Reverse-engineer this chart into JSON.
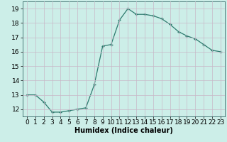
{
  "x": [
    0,
    1,
    2,
    3,
    4,
    5,
    6,
    7,
    8,
    9,
    10,
    11,
    12,
    13,
    14,
    15,
    16,
    17,
    18,
    19,
    20,
    21,
    22,
    23
  ],
  "y": [
    13.0,
    13.0,
    12.5,
    11.8,
    11.8,
    11.9,
    12.0,
    12.1,
    13.7,
    16.4,
    16.5,
    18.2,
    19.0,
    18.6,
    18.6,
    18.5,
    18.3,
    17.9,
    17.4,
    17.1,
    16.9,
    16.5,
    16.1,
    16.0
  ],
  "line_color": "#2d7a6e",
  "marker": "+",
  "marker_size": 3,
  "xlabel": "Humidex (Indice chaleur)",
  "ylim": [
    11.5,
    19.5
  ],
  "yticks": [
    12,
    13,
    14,
    15,
    16,
    17,
    18,
    19
  ],
  "xlim": [
    -0.5,
    23.5
  ],
  "xticks": [
    0,
    1,
    2,
    3,
    4,
    5,
    6,
    7,
    8,
    9,
    10,
    11,
    12,
    13,
    14,
    15,
    16,
    17,
    18,
    19,
    20,
    21,
    22,
    23
  ],
  "bg_color": "#cceee8",
  "grid_color": "#c8b8c8",
  "xlabel_fontsize": 7,
  "tick_fontsize": 6.5
}
